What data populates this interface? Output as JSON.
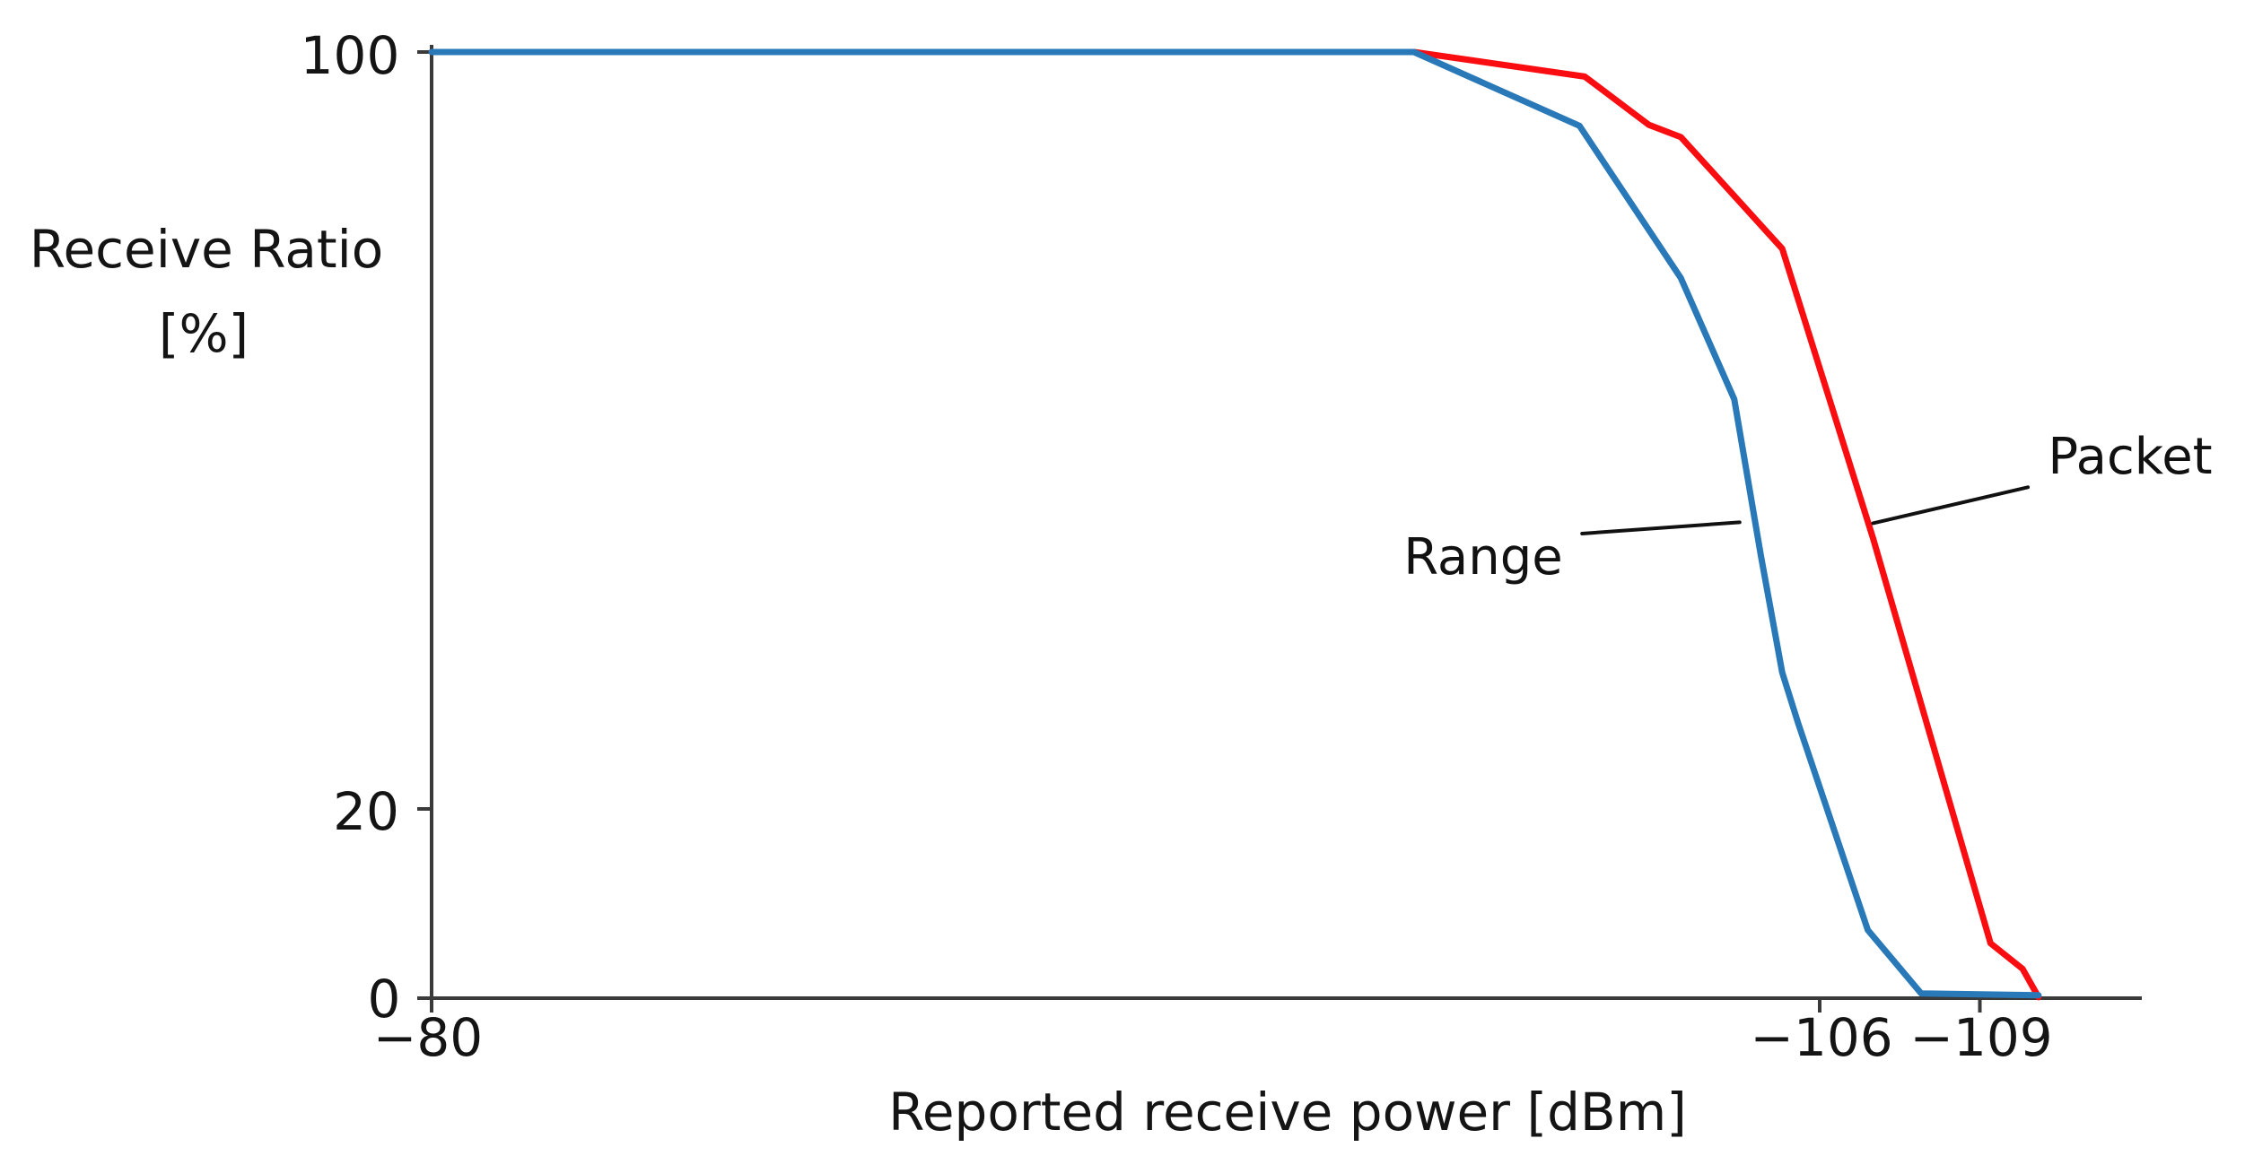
{
  "chart_data": {
    "type": "line",
    "title": "",
    "xlabel": "Reported receive power [dBm]",
    "ylabel": "Receive Ratio",
    "ylabel_units": "[%]",
    "xlim": [
      -80,
      -112
    ],
    "ylim": [
      0,
      100
    ],
    "grid": false,
    "legend_position": "inline-annotations",
    "axis_color": "#3a3a3a",
    "annotation_line_color": "#111111",
    "x_ticks": [
      {
        "value": -80,
        "label": "−80"
      },
      {
        "value": -106,
        "label": "−106"
      },
      {
        "value": -109,
        "label": "−109"
      }
    ],
    "y_ticks": [
      {
        "value": 100,
        "label": "100"
      },
      {
        "value": 20,
        "label": "20"
      },
      {
        "value": 0,
        "label": "0"
      }
    ],
    "series": [
      {
        "name": "Packet",
        "color": "#fa0d10",
        "points": [
          [
            -80,
            100
          ],
          [
            -98.4,
            100
          ],
          [
            -101.6,
            97.4
          ],
          [
            -102.8,
            92.3
          ],
          [
            -103.4,
            91.0
          ],
          [
            -105.3,
            79.2
          ],
          [
            -107.0,
            48.6
          ],
          [
            -109.2,
            5.8
          ],
          [
            -109.8,
            3.1
          ],
          [
            -110.1,
            0.1
          ]
        ]
      },
      {
        "name": "Range",
        "color": "#2979b8",
        "points": [
          [
            -80,
            100
          ],
          [
            -98.4,
            100
          ],
          [
            -101.5,
            92.2
          ],
          [
            -103.4,
            76.1
          ],
          [
            -104.4,
            63.3
          ],
          [
            -104.9,
            46.7
          ],
          [
            -105.3,
            34.4
          ],
          [
            -105.6,
            29.0
          ],
          [
            -106.9,
            7.2
          ],
          [
            -107.9,
            0.5
          ],
          [
            -110.1,
            0.3
          ]
        ]
      }
    ],
    "annotations": [
      {
        "text": "Range",
        "line_from": [
          -101.55,
          49.1
        ],
        "line_to": [
          -104.5,
          50.3
        ]
      },
      {
        "text": "Packet",
        "line_from": [
          -109.9,
          54.0
        ],
        "line_to": [
          -107.0,
          50.2
        ]
      }
    ]
  }
}
